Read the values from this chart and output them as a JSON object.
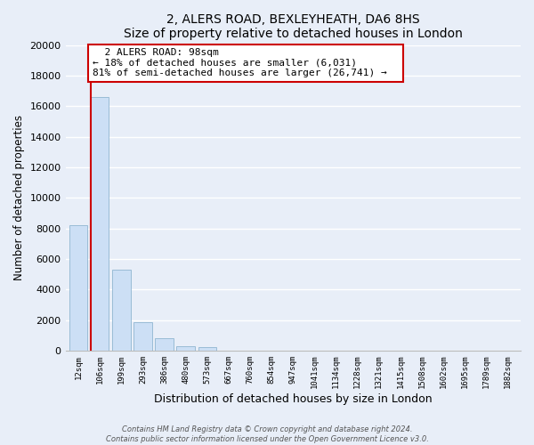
{
  "title": "2, ALERS ROAD, BEXLEYHEATH, DA6 8HS",
  "subtitle": "Size of property relative to detached houses in London",
  "xlabel": "Distribution of detached houses by size in London",
  "ylabel": "Number of detached properties",
  "bar_labels": [
    "12sqm",
    "106sqm",
    "199sqm",
    "293sqm",
    "386sqm",
    "480sqm",
    "573sqm",
    "667sqm",
    "760sqm",
    "854sqm",
    "947sqm",
    "1041sqm",
    "1134sqm",
    "1228sqm",
    "1321sqm",
    "1415sqm",
    "1508sqm",
    "1602sqm",
    "1695sqm",
    "1789sqm",
    "1882sqm"
  ],
  "bar_values": [
    8200,
    16600,
    5300,
    1850,
    800,
    300,
    250,
    0,
    0,
    0,
    0,
    0,
    0,
    0,
    0,
    0,
    0,
    0,
    0,
    0,
    0
  ],
  "bar_color": "#ccdff5",
  "bar_edge_color": "#9abcd6",
  "highlight_bar_idx": 1,
  "highlight_color": "#cc0000",
  "annotation_title": "2 ALERS ROAD: 98sqm",
  "annotation_line1": "← 18% of detached houses are smaller (6,031)",
  "annotation_line2": "81% of semi-detached houses are larger (26,741) →",
  "annotation_box_color": "#ffffff",
  "annotation_box_edge": "#cc0000",
  "ylim": [
    0,
    20000
  ],
  "yticks": [
    0,
    2000,
    4000,
    6000,
    8000,
    10000,
    12000,
    14000,
    16000,
    18000,
    20000
  ],
  "footer_line1": "Contains HM Land Registry data © Crown copyright and database right 2024.",
  "footer_line2": "Contains public sector information licensed under the Open Government Licence v3.0.",
  "bg_color": "#e8eef8",
  "plot_bg_color": "#e8eef8",
  "grid_color": "#ffffff"
}
